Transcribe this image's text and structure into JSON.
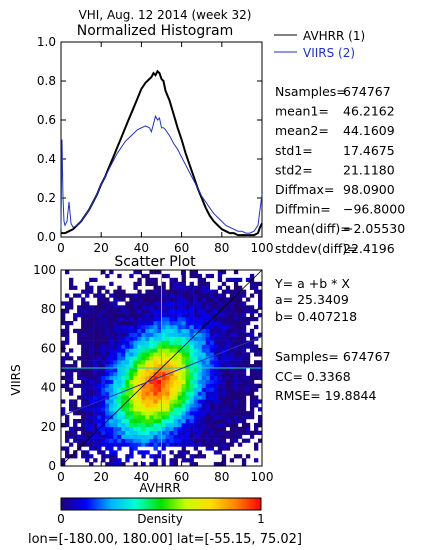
{
  "page_title": "VHI,  Aug. 12 2014 (week 32)",
  "footer": "lon=[-180.00, 180.00] lat=[-55.15, 75.02]",
  "chart_data": [
    {
      "type": "line",
      "title": "Normalized Histogram",
      "xlim": [
        0,
        100
      ],
      "ylim": [
        0,
        1.0
      ],
      "x_ticks": [
        0,
        20,
        40,
        60,
        80,
        100
      ],
      "y_ticks": [
        "0.0",
        "0.2",
        "0.4",
        "0.6",
        "0.8",
        "1.0"
      ],
      "legend": [
        {
          "label": "AVHRR (1)",
          "color": "#000000"
        },
        {
          "label": "VIIRS (2)",
          "color": "#2233bb"
        }
      ],
      "series": [
        {
          "name": "AVHRR (1)",
          "color": "#000000",
          "x": [
            0,
            2,
            4,
            6,
            8,
            10,
            12,
            14,
            16,
            18,
            20,
            22,
            24,
            26,
            28,
            30,
            32,
            34,
            36,
            38,
            40,
            42,
            44,
            45,
            46,
            47,
            48,
            49,
            50,
            51,
            52,
            54,
            56,
            58,
            60,
            62,
            64,
            66,
            68,
            70,
            72,
            74,
            76,
            78,
            80,
            82,
            84,
            86,
            88,
            90,
            92,
            94,
            96,
            98,
            99,
            100
          ],
          "values": [
            0.02,
            0.02,
            0.03,
            0.04,
            0.06,
            0.08,
            0.11,
            0.14,
            0.18,
            0.22,
            0.27,
            0.31,
            0.36,
            0.41,
            0.46,
            0.51,
            0.56,
            0.61,
            0.66,
            0.71,
            0.76,
            0.79,
            0.81,
            0.82,
            0.84,
            0.83,
            0.85,
            0.84,
            0.81,
            0.8,
            0.75,
            0.7,
            0.63,
            0.56,
            0.5,
            0.43,
            0.37,
            0.31,
            0.25,
            0.2,
            0.15,
            0.11,
            0.08,
            0.06,
            0.04,
            0.03,
            0.02,
            0.02,
            0.01,
            0.01,
            0.01,
            0.01,
            0.01,
            0.02,
            0.05,
            0.07
          ]
        },
        {
          "name": "VIIRS (2)",
          "color": "#2233bb",
          "x": [
            0,
            0.5,
            1,
            1.5,
            2,
            3,
            4,
            5,
            6,
            8,
            10,
            12,
            14,
            16,
            18,
            20,
            22,
            24,
            26,
            28,
            30,
            32,
            34,
            36,
            38,
            40,
            42,
            44,
            45,
            46,
            47,
            48,
            49,
            50,
            51,
            52,
            54,
            56,
            58,
            60,
            62,
            64,
            66,
            68,
            70,
            72,
            74,
            76,
            78,
            80,
            82,
            84,
            86,
            88,
            90,
            92,
            94,
            96,
            98,
            99,
            100
          ],
          "values": [
            0.04,
            0.5,
            0.2,
            0.08,
            0.06,
            0.08,
            0.18,
            0.07,
            0.05,
            0.06,
            0.08,
            0.11,
            0.14,
            0.18,
            0.22,
            0.27,
            0.31,
            0.35,
            0.39,
            0.43,
            0.46,
            0.49,
            0.51,
            0.53,
            0.55,
            0.56,
            0.57,
            0.56,
            0.54,
            0.58,
            0.62,
            0.6,
            0.61,
            0.56,
            0.56,
            0.55,
            0.52,
            0.48,
            0.45,
            0.41,
            0.37,
            0.33,
            0.29,
            0.25,
            0.21,
            0.18,
            0.15,
            0.12,
            0.1,
            0.08,
            0.06,
            0.05,
            0.04,
            0.03,
            0.03,
            0.02,
            0.02,
            0.03,
            0.06,
            0.14,
            0.22
          ]
        }
      ]
    },
    {
      "type": "heatmap",
      "title": "Scatter Plot",
      "xlabel": "AVHRR",
      "ylabel": "VIIRS",
      "xlim": [
        0,
        100
      ],
      "ylim": [
        0,
        100
      ],
      "x_ticks": [
        0,
        20,
        40,
        60,
        80,
        100
      ],
      "y_ticks": [
        0,
        20,
        40,
        60,
        80,
        100
      ],
      "density_center": [
        48,
        42
      ],
      "density_sigma": [
        14,
        17
      ],
      "correlation": 0.3368,
      "crosshair": [
        50,
        50
      ],
      "regression": {
        "a": 25.3409,
        "b": 0.407218
      }
    }
  ],
  "stats_hist": [
    {
      "label": "Nsamples=",
      "value": "674767"
    },
    {
      "label": "mean1=",
      "value": "46.2162"
    },
    {
      "label": "mean2=",
      "value": "44.1609"
    },
    {
      "label": "std1=",
      "value": "17.4675"
    },
    {
      "label": "std2=",
      "value": "21.1180"
    },
    {
      "label": "Diffmax=",
      "value": "98.0900"
    },
    {
      "label": "Diffmin=",
      "value": "−96.8000"
    },
    {
      "label": "mean(diff)=",
      "value": "−2.05530"
    },
    {
      "label": "stddev(diff)=",
      "value": "22.4196"
    }
  ],
  "stats_scatter": {
    "equation": "Y= a +b * X",
    "a_line": "a= 25.3409",
    "b_line": "b= 0.407218",
    "samples_line": "Samples= 674767",
    "cc_line": "CC=   0.3368",
    "rmse_line": "RMSE= 19.8844"
  },
  "colorbar": {
    "label": "Density",
    "min_label": "0",
    "max_label": "1",
    "colors": [
      "#1e0078",
      "#0000ff",
      "#00b4ff",
      "#00ffd2",
      "#00e100",
      "#c8ff00",
      "#ffdc00",
      "#ff8200",
      "#ff0000"
    ]
  }
}
